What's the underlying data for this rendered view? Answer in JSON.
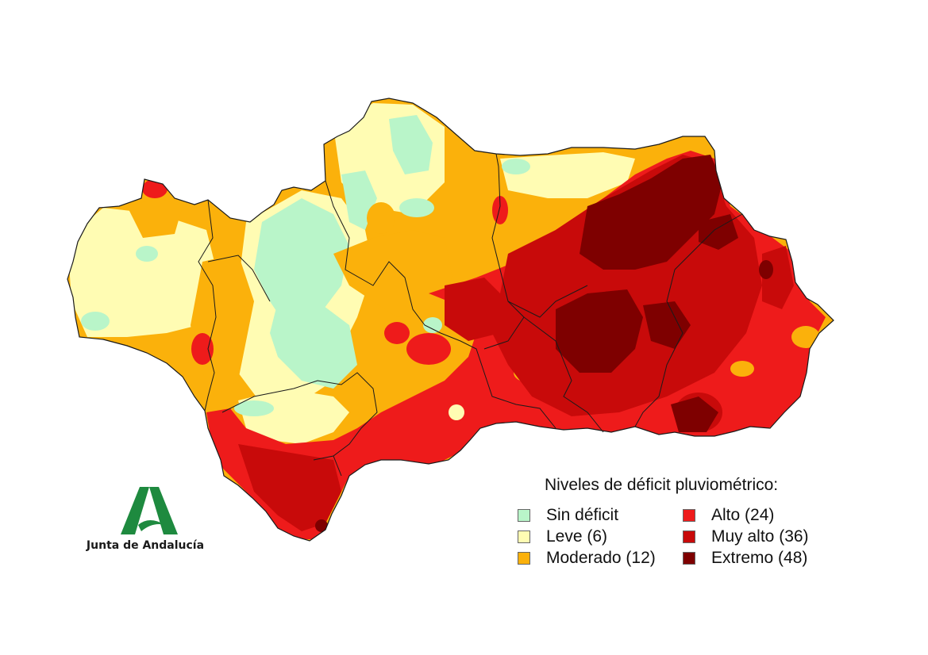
{
  "legend": {
    "title": "Niveles de déficit pluviométrico:",
    "items": [
      {
        "label": "Sin déficit",
        "color": "#b9f5c9"
      },
      {
        "label": "Leve (6)",
        "color": "#fffcb3"
      },
      {
        "label": "Moderado (12)",
        "color": "#fbb10b"
      },
      {
        "label": "Alto (24)",
        "color": "#ee1b1b"
      },
      {
        "label": "Muy alto (36)",
        "color": "#c80a0a"
      },
      {
        "label": "Extremo (48)",
        "color": "#7e0000"
      }
    ]
  },
  "logo": {
    "text": "Junta de Andalucía",
    "color": "#1e8a3f"
  },
  "map": {
    "region": "Andalucía",
    "border_color": "#1a1a1a"
  }
}
